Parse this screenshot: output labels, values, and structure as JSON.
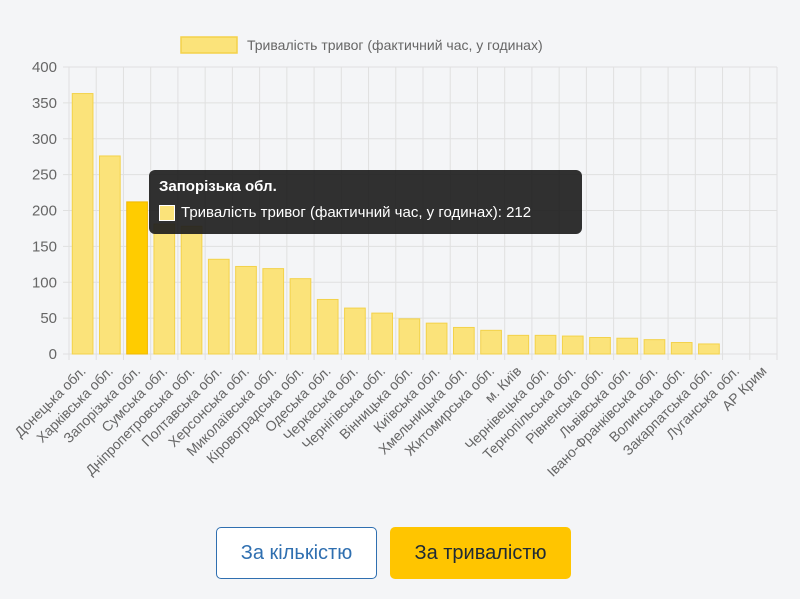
{
  "chart_data": {
    "type": "bar",
    "legend": "Тривалість тривог (фактичний час, у годинах)",
    "legend_position": "top",
    "categories": [
      "Донецька обл.",
      "Харківська обл.",
      "Запорізька обл.",
      "Сумська обл.",
      "Дніпропетровська обл.",
      "Полтавська обл.",
      "Херсонська обл.",
      "Миколаївська обл.",
      "Кіровоградська обл.",
      "Одеська обл.",
      "Черкаська обл.",
      "Чернігівська обл.",
      "Вінницька обл.",
      "Київська обл.",
      "Хмельницька обл.",
      "Житомирська обл.",
      "м. Київ",
      "Чернівецька обл.",
      "Тернопільська обл.",
      "Рівненська обл.",
      "Львівська обл.",
      "Івано-Франківська обл.",
      "Волинська обл.",
      "Закарпатська обл.",
      "Луганська обл.",
      "АР Крим"
    ],
    "values": [
      363,
      276,
      212,
      181,
      178,
      132,
      122,
      119,
      105,
      76,
      64,
      57,
      49,
      43,
      37,
      33,
      26,
      26,
      25,
      23,
      22,
      20,
      16,
      14,
      0,
      0
    ],
    "highlight_index": 2,
    "ylim": [
      0,
      400
    ],
    "yticks": [
      "0",
      "50",
      "100",
      "150",
      "200",
      "250",
      "300",
      "350",
      "400"
    ],
    "grid": true,
    "colors": {
      "bar": "#fbe37a",
      "bar_border": "#f3d24a",
      "bar_highlight": "#ffcc00",
      "grid": "#e0e0e0",
      "text": "#666666"
    }
  },
  "tooltip": {
    "title": "Запорізька обл.",
    "label": "Тривалість тривог (фактичний час, у годинах): 212"
  },
  "buttons": {
    "by_count": "За кількістю",
    "by_duration": "За тривалістю"
  }
}
